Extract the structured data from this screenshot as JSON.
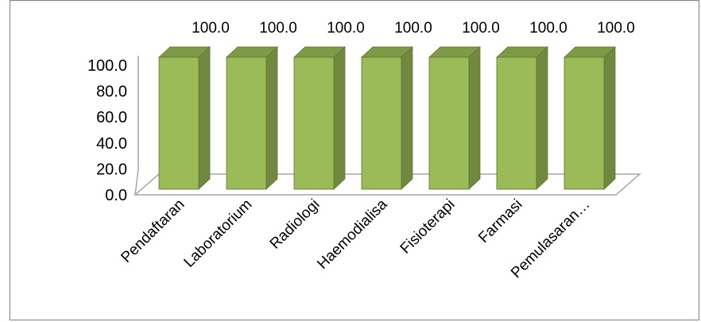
{
  "chart_data": {
    "type": "bar",
    "style": "3d-column",
    "categories": [
      "Pendaftaran",
      "Laboratorium",
      "Radiologi",
      "Haemodialisa",
      "Fisioterapi",
      "Farmasi",
      "Pemulasaran…"
    ],
    "values": [
      100.0,
      100.0,
      100.0,
      100.0,
      100.0,
      100.0,
      100.0
    ],
    "data_labels": [
      "100.0",
      "100.0",
      "100.0",
      "100.0",
      "100.0",
      "100.0",
      "100.0"
    ],
    "y_ticks": [
      "0.0",
      "20.0",
      "40.0",
      "60.0",
      "80.0",
      "100.0"
    ],
    "ylim": [
      0,
      100
    ],
    "title": "",
    "xlabel": "",
    "ylabel": "",
    "grid": false,
    "legend": "none",
    "colors": {
      "bar_front": "#9bbb59",
      "bar_side": "#71893f",
      "bar_top": "#7d9a47",
      "bar_outline": "#5f7530",
      "axis": "#a6a6a6",
      "border": "#7f7f7f"
    }
  }
}
